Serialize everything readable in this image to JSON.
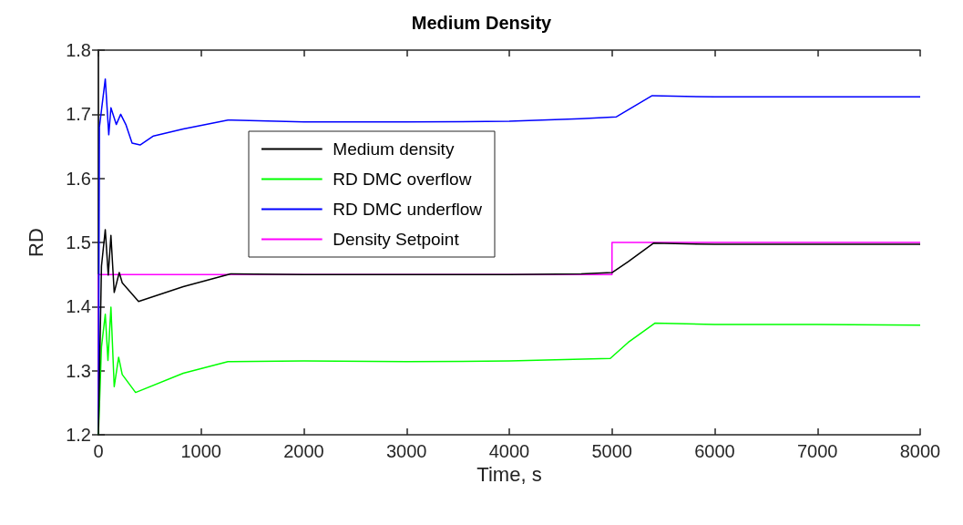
{
  "chart_data": {
    "type": "line",
    "title": "Medium Density",
    "xlabel": "Time, s",
    "ylabel": "RD",
    "xlim": [
      0,
      8000
    ],
    "xticks": [
      0,
      1000,
      2000,
      3000,
      4000,
      5000,
      6000,
      7000,
      8000
    ],
    "ylim": [
      1.2,
      1.8
    ],
    "yticks": [
      1.2,
      1.3,
      1.4,
      1.5,
      1.6,
      1.7,
      1.8
    ],
    "grid": false,
    "legend": "top left",
    "marker": "none",
    "line_style": "solid",
    "series": [
      {
        "name": "Medium density",
        "color": "#000000",
        "x": [
          0,
          30,
          67,
          96,
          122,
          154,
          203,
          232,
          391,
          826,
          1287,
          2000,
          3000,
          4000,
          4700,
          5000,
          5157,
          5406,
          6000,
          7000,
          8000
        ],
        "values": [
          1.2,
          1.463,
          1.52,
          1.449,
          1.511,
          1.422,
          1.453,
          1.437,
          1.408,
          1.431,
          1.451,
          1.45,
          1.45,
          1.45,
          1.451,
          1.453,
          1.47,
          1.499,
          1.497,
          1.497,
          1.497
        ]
      },
      {
        "name": "RD DMC overflow",
        "color": "#00ff00",
        "x": [
          0,
          30,
          67,
          93,
          122,
          154,
          197,
          232,
          362,
          826,
          1261,
          2000,
          3000,
          4000,
          4983,
          5157,
          5417,
          6000,
          7000,
          8000
        ],
        "values": [
          1.2,
          1.337,
          1.388,
          1.316,
          1.399,
          1.275,
          1.321,
          1.294,
          1.266,
          1.296,
          1.314,
          1.315,
          1.314,
          1.315,
          1.319,
          1.344,
          1.374,
          1.372,
          1.372,
          1.371
        ]
      },
      {
        "name": "RD DMC underflow",
        "color": "#0000ff",
        "x": [
          0,
          10,
          67,
          101,
          122,
          174,
          217,
          267,
          328,
          406,
          536,
          826,
          1261,
          2000,
          3000,
          4000,
          4696,
          5043,
          5391,
          6000,
          7000,
          8000
        ],
        "values": [
          1.2,
          1.68,
          1.755,
          1.668,
          1.71,
          1.684,
          1.7,
          1.684,
          1.655,
          1.652,
          1.666,
          1.677,
          1.691,
          1.688,
          1.688,
          1.689,
          1.693,
          1.696,
          1.729,
          1.727,
          1.727,
          1.727
        ]
      },
      {
        "name": "Density Setpoint",
        "color": "#ff00ff",
        "x": [
          0,
          1,
          5000,
          5000,
          8000
        ],
        "values": [
          1.2,
          1.45,
          1.45,
          1.5,
          1.5
        ]
      }
    ]
  }
}
